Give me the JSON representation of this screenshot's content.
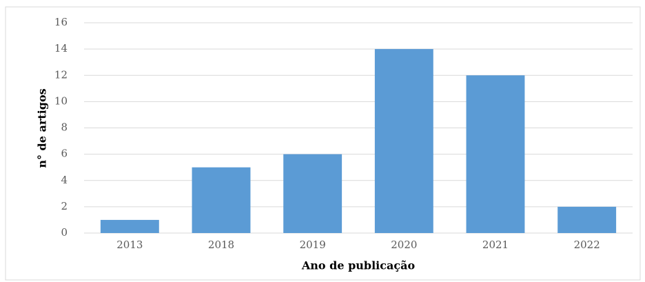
{
  "chart_data": {
    "type": "bar",
    "x_label": "Ano de publicação",
    "y_label": "n° de artigos",
    "categories": [
      "2013",
      "2018",
      "2019",
      "2020",
      "2021",
      "2022"
    ],
    "values": [
      1,
      5,
      6,
      14,
      12,
      2
    ],
    "color": "#5b9bd5",
    "ylim": [
      0,
      16
    ],
    "yticks": [
      0,
      2,
      4,
      6,
      8,
      10,
      12,
      14,
      16
    ],
    "grid": true
  }
}
